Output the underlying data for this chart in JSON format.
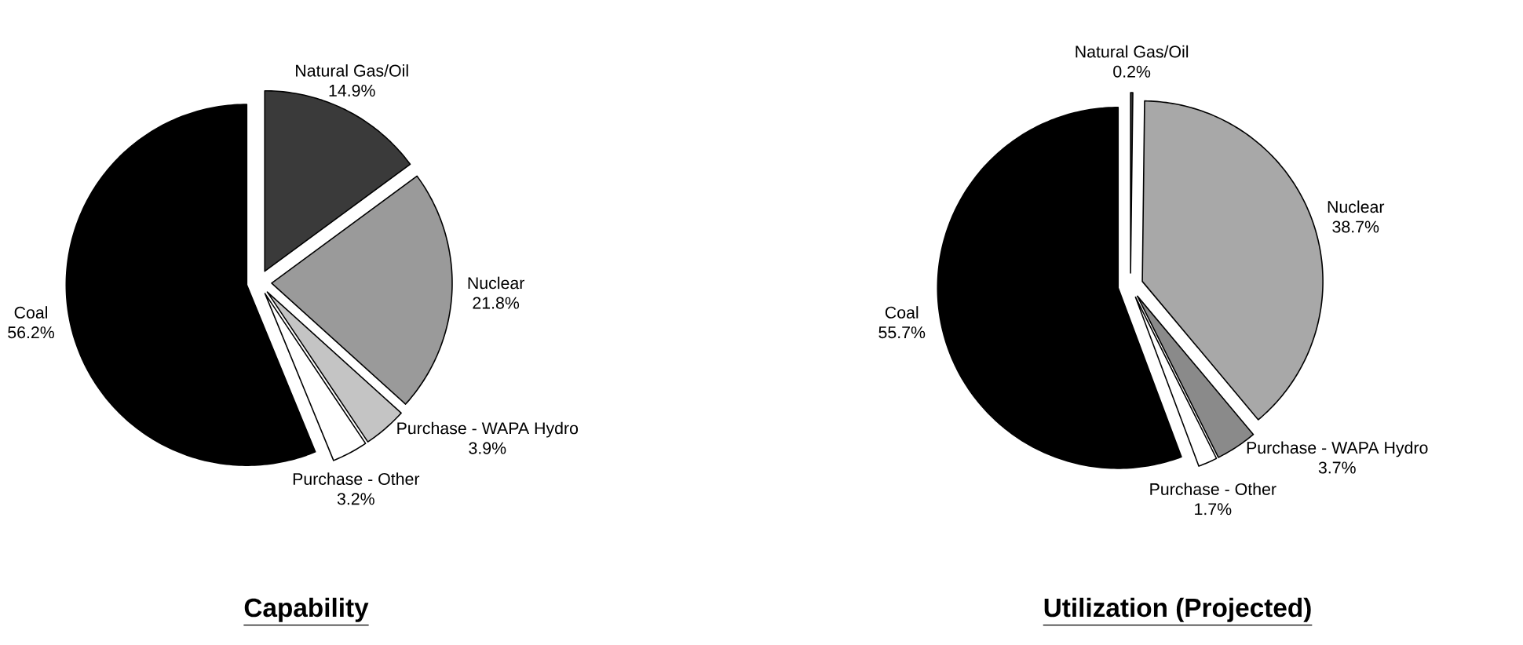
{
  "chart_data": [
    {
      "type": "pie",
      "title": "Capability",
      "categories": [
        "Natural Gas/Oil",
        "Nuclear",
        "Purchase - WAPA Hydro",
        "Purchase - Other",
        "Coal"
      ],
      "values": [
        14.9,
        21.8,
        3.9,
        3.2,
        56.2
      ],
      "value_labels": [
        "14.9%",
        "21.8%",
        "3.9%",
        "3.2%",
        "56.2%"
      ],
      "colors": [
        "#3a3a3a",
        "#9a9a9a",
        "#c4c4c4",
        "#ffffff",
        "#000000"
      ]
    },
    {
      "type": "pie",
      "title": "Utilization (Projected)",
      "categories": [
        "Natural Gas/Oil",
        "Nuclear",
        "Purchase - WAPA Hydro",
        "Purchase - Other",
        "Coal"
      ],
      "values": [
        0.2,
        38.7,
        3.7,
        1.7,
        55.7
      ],
      "value_labels": [
        "0.2%",
        "38.7%",
        "3.7%",
        "1.7%",
        "55.7%"
      ],
      "colors": [
        "#3a3a3a",
        "#a8a8a8",
        "#8a8a8a",
        "#ffffff",
        "#000000"
      ]
    }
  ]
}
